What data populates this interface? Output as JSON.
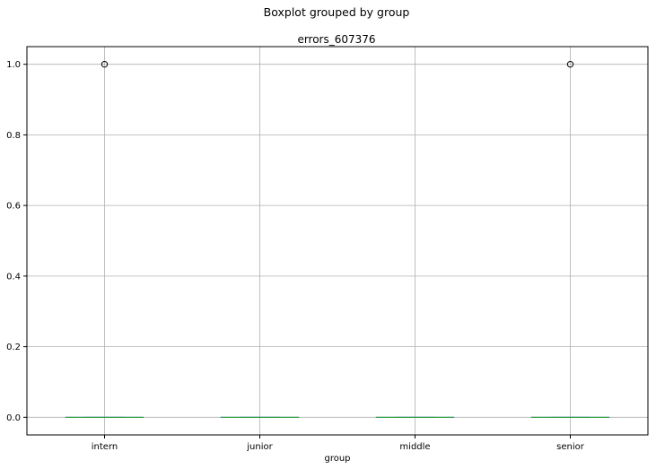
{
  "chart_data": {
    "type": "box",
    "suptitle": "Boxplot grouped by group",
    "title": "errors_607376",
    "xlabel": "group",
    "ylabel": "",
    "categories": [
      "intern",
      "junior",
      "middle",
      "senior"
    ],
    "boxes": [
      {
        "category": "intern",
        "min": 0,
        "q1": 0,
        "median": 0,
        "q3": 0,
        "max": 0,
        "outliers": [
          1.0
        ]
      },
      {
        "category": "junior",
        "min": 0,
        "q1": 0,
        "median": 0,
        "q3": 0,
        "max": 0,
        "outliers": []
      },
      {
        "category": "middle",
        "min": 0,
        "q1": 0,
        "median": 0,
        "q3": 0,
        "max": 0,
        "outliers": []
      },
      {
        "category": "senior",
        "min": 0,
        "q1": 0,
        "median": 0,
        "q3": 0,
        "max": 0,
        "outliers": [
          1.0
        ]
      }
    ],
    "ylim": [
      -0.05,
      1.05
    ],
    "yticks": [
      0.0,
      0.2,
      0.4,
      0.6,
      0.8,
      1.0
    ],
    "ytick_labels": [
      "0.0",
      "0.2",
      "0.4",
      "0.6",
      "0.8",
      "1.0"
    ],
    "grid": true,
    "colors": {
      "median": "#2ca02c",
      "box": "#1f77b4",
      "outlier_edge": "#000000",
      "grid": "#b0b0b0"
    }
  }
}
